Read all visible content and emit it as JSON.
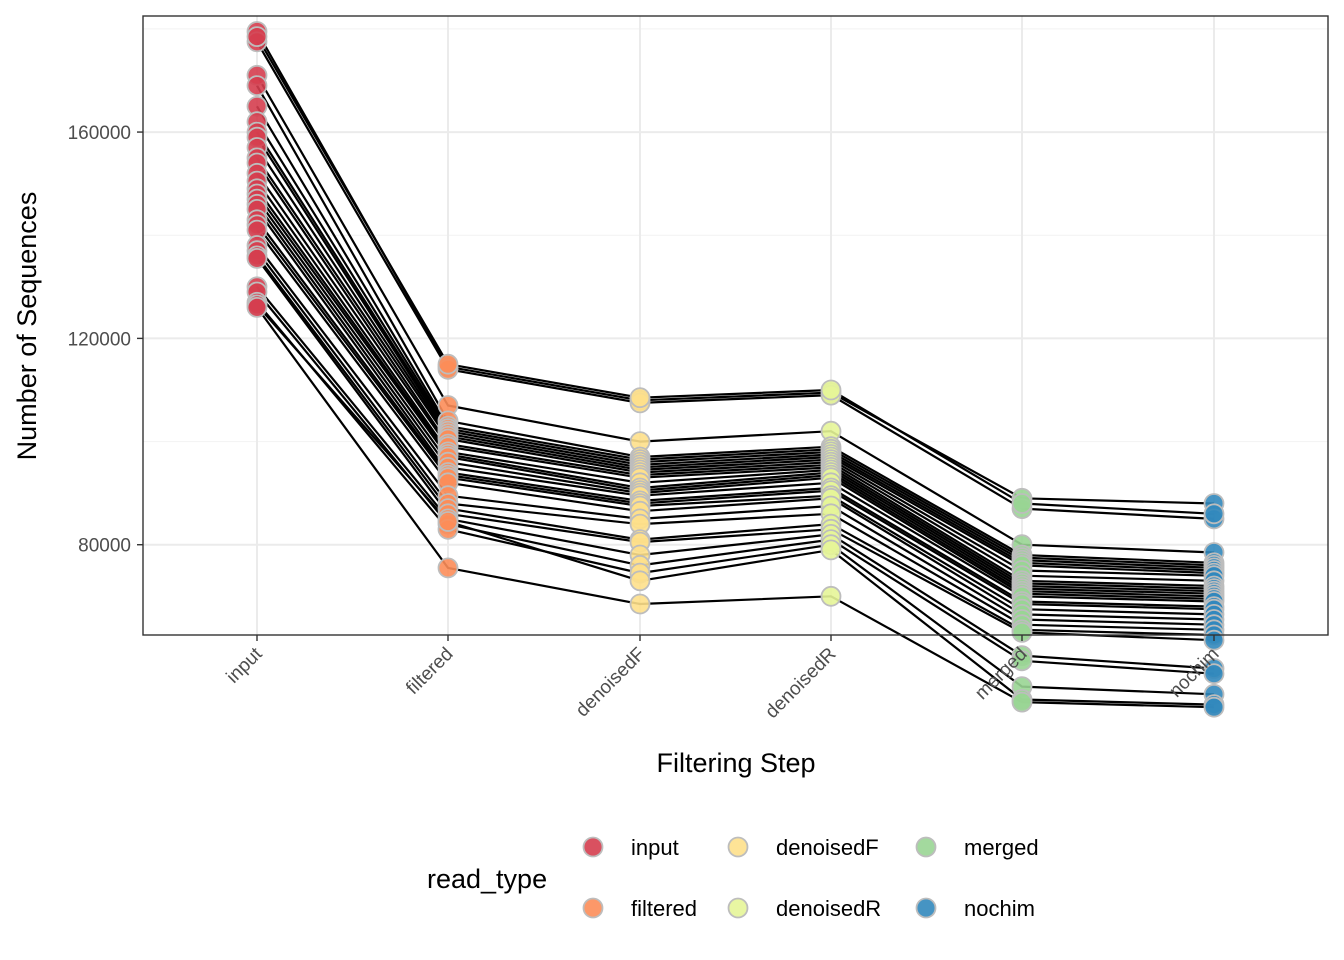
{
  "chart_data": {
    "type": "line",
    "xlabel": "Filtering Step",
    "ylabel": "Number of Sequences",
    "categories": [
      "input",
      "filtered",
      "denoisedF",
      "denoisedR",
      "merged",
      "nochim"
    ],
    "y_ticks": [
      80000,
      120000,
      160000
    ],
    "y_tick_labels": [
      "80000",
      "120000",
      "160000"
    ],
    "ylim": [
      62500,
      182500
    ],
    "grid": true,
    "legend": {
      "title": "read_type",
      "placement": "bottom",
      "entries": [
        "input",
        "filtered",
        "denoisedF",
        "denoisedR",
        "merged",
        "nochim"
      ]
    },
    "colors": {
      "input": "#D53E4F",
      "filtered": "#FC8D59",
      "denoisedF": "#FEE08B",
      "denoisedR": "#E6F598",
      "merged": "#99D594",
      "nochim": "#3288BD",
      "point_outline": "#BDBDBD",
      "line": "#000000"
    },
    "series": [
      {
        "values": [
          179500,
          114500,
          108000,
          109500,
          89000,
          88000
        ]
      },
      {
        "values": [
          177500,
          114000,
          107500,
          109000,
          87000,
          85000
        ]
      },
      {
        "values": [
          178500,
          115000,
          108500,
          110000,
          88000,
          86000
        ]
      },
      {
        "values": [
          171000,
          107000,
          100000,
          102000,
          80000,
          78500
        ]
      },
      {
        "values": [
          169000,
          104000,
          97000,
          99000,
          78000,
          76500
        ]
      },
      {
        "values": [
          165000,
          103000,
          96500,
          98500,
          77500,
          76000
        ]
      },
      {
        "values": [
          162000,
          102500,
          96000,
          98000,
          77000,
          75500
        ]
      },
      {
        "values": [
          160000,
          102000,
          95500,
          97500,
          76500,
          75000
        ]
      },
      {
        "values": [
          159000,
          101500,
          95000,
          97000,
          76000,
          74500
        ]
      },
      {
        "values": [
          157000,
          101000,
          94500,
          96500,
          75000,
          74000
        ]
      },
      {
        "values": [
          155000,
          100500,
          94000,
          96000,
          74000,
          73000
        ]
      },
      {
        "values": [
          154000,
          99500,
          93500,
          95500,
          73000,
          72000
        ]
      },
      {
        "values": [
          152000,
          99000,
          93000,
          95000,
          72500,
          71500
        ]
      },
      {
        "values": [
          150500,
          98000,
          92000,
          94500,
          72000,
          71000
        ]
      },
      {
        "values": [
          149000,
          97500,
          91000,
          94000,
          71500,
          70500
        ]
      },
      {
        "values": [
          148000,
          97000,
          90500,
          93500,
          71000,
          70000
        ]
      },
      {
        "values": [
          147000,
          96000,
          90000,
          93000,
          70500,
          69500
        ]
      },
      {
        "values": [
          146000,
          95000,
          89500,
          92000,
          70000,
          69000
        ]
      },
      {
        "values": [
          145000,
          94000,
          88500,
          91000,
          69000,
          68000
        ]
      },
      {
        "values": [
          143000,
          93500,
          88000,
          90500,
          68500,
          67500
        ]
      },
      {
        "values": [
          142000,
          93000,
          87500,
          89500,
          67500,
          66500
        ]
      },
      {
        "values": [
          141000,
          92000,
          86500,
          89000,
          66500,
          65500
        ]
      },
      {
        "values": [
          138000,
          89500,
          85000,
          87500,
          65500,
          64500
        ]
      },
      {
        "values": [
          137000,
          88000,
          84000,
          86000,
          64500,
          63500
        ]
      },
      {
        "values": [
          136000,
          87000,
          81000,
          84000,
          63500,
          62500
        ]
      },
      {
        "values": [
          135500,
          86000,
          80500,
          83000,
          63000,
          61500
        ]
      },
      {
        "values": [
          130000,
          85000,
          78000,
          82000,
          58500,
          56000
        ]
      },
      {
        "values": [
          129000,
          84000,
          76000,
          81000,
          57500,
          55000
        ]
      },
      {
        "values": [
          127000,
          83000,
          74500,
          80000,
          52500,
          51000
        ]
      },
      {
        "values": [
          126500,
          84500,
          73000,
          79000,
          50000,
          49000
        ]
      },
      {
        "values": [
          126000,
          75500,
          68500,
          70000,
          49500,
          48500
        ]
      }
    ]
  }
}
